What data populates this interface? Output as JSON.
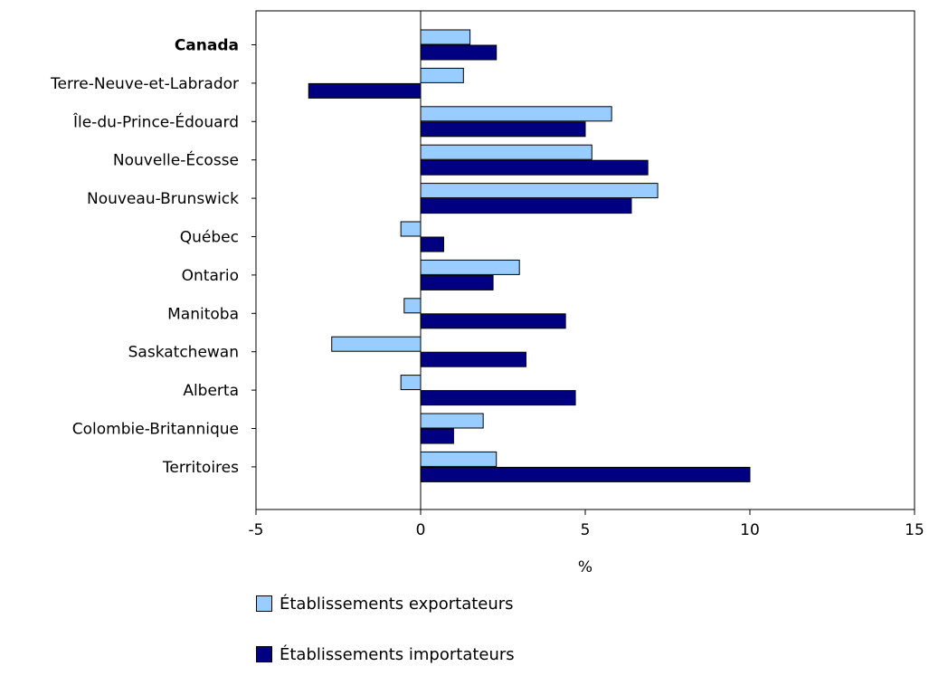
{
  "chart_data": {
    "type": "bar",
    "orientation": "horizontal",
    "xlabel": "%",
    "xlim": [
      -5,
      15
    ],
    "xticks": [
      "-5",
      "0",
      "5",
      "10",
      "15"
    ],
    "bold_categories": [
      "Canada"
    ],
    "categories": [
      "Canada",
      "Terre-Neuve-et-Labrador",
      "Île-du-Prince-Édouard",
      "Nouvelle-Écosse",
      "Nouveau-Brunswick",
      "Québec",
      "Ontario",
      "Manitoba",
      "Saskatchewan",
      "Alberta",
      "Colombie-Britannique",
      "Territoires"
    ],
    "series": [
      {
        "name": "Établissements exportateurs",
        "color": "#99ccff",
        "values": [
          1.5,
          1.3,
          5.8,
          5.2,
          7.2,
          -0.6,
          3.0,
          -0.5,
          -2.7,
          -0.6,
          1.9,
          2.3
        ]
      },
      {
        "name": "Établissements importateurs",
        "color": "#000080",
        "values": [
          2.3,
          -3.4,
          5.0,
          6.9,
          6.4,
          0.7,
          2.2,
          4.4,
          3.2,
          4.7,
          1.0,
          10.0
        ]
      }
    ],
    "legend_position": "bottom-left"
  }
}
